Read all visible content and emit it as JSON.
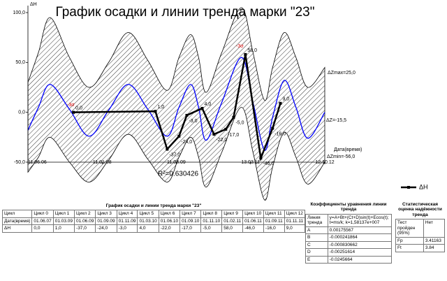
{
  "chart_data": {
    "type": "line",
    "title": "График осадки и линии тренда марки \"23\"",
    "y_label": "ΔH",
    "x_label": "Дата(время)",
    "r_squared": "R²=0.630426",
    "annotations": [
      "-3σ",
      "-3σ",
      "ΔZmax=25,0",
      "ΔZ=-15,5",
      "ΔZmin=-56,0"
    ],
    "x": [
      "01.06.07",
      "01.03.09",
      "01.06.09",
      "01.09.09",
      "01.11.09",
      "01.03.10",
      "01.06.10",
      "01.09.10",
      "01.11.10",
      "01.02.11",
      "01.06.11",
      "01.09.11",
      "01.11.11"
    ],
    "series": [
      {
        "name": "ΔH",
        "color": "#000000",
        "values": [
          0,
          1,
          -37,
          -24,
          -3,
          4,
          -22,
          -17,
          -5,
          58,
          -46,
          -16,
          9
        ],
        "value_labels": [
          "0,0",
          "1,0",
          "-37,0",
          "-24,0",
          "-3,0",
          "4,0",
          "-22,0",
          "-17,0",
          "-5,0",
          "58,0",
          "-46,0",
          "-16,0",
          "9,0"
        ]
      }
    ],
    "trend": {
      "color": "#0000ff",
      "x": [
        "11.06.06",
        "01.09.06",
        "01.12.06",
        "01.05.07",
        "01.10.07",
        "01.03.08",
        "01.08.08",
        "01.01.09",
        "01.06.09",
        "01.09.09",
        "01.12.09",
        "01.02.10",
        "01.04.10",
        "01.08.10",
        "01.01.11",
        "01.04.11",
        "01.07.11",
        "01.09.11",
        "01.12.11",
        "01.03.12",
        "01.06.12",
        "12.10.12"
      ],
      "values": [
        -18,
        5,
        28,
        3,
        -24,
        2,
        28,
        3,
        -24,
        5,
        28,
        5,
        -28,
        10,
        55,
        10,
        -38,
        -5,
        32,
        5,
        -26,
        0
      ],
      "upper": [
        30,
        60,
        95,
        55,
        25,
        50,
        80,
        52,
        22,
        55,
        78,
        55,
        20,
        60,
        105,
        60,
        12,
        45,
        80,
        55,
        25,
        45
      ],
      "lower": [
        -60,
        -45,
        -25,
        -50,
        -70,
        -48,
        -22,
        -47,
        -70,
        -45,
        -25,
        -45,
        -75,
        -40,
        5,
        -40,
        -88,
        -55,
        -20,
        -45,
        -72,
        -50
      ]
    },
    "xlim": [
      "11.06.06",
      "12.10.12"
    ],
    "xticks": [
      "11.06.06",
      "11.01.08",
      "11.08.09",
      "13.03.11",
      "12.10.12"
    ],
    "ylim": [
      -50,
      100
    ],
    "yticks": [
      {
        "value": -50,
        "label": "-50,0"
      },
      {
        "value": 0,
        "label": "0,0"
      },
      {
        "value": 50,
        "label": "50,0"
      },
      {
        "value": 100,
        "label": "100,0"
      }
    ],
    "grid": false,
    "legend": "right"
  },
  "table": {
    "title": "График осадки и линии тренда марки \"23\"",
    "header": [
      "Цикл",
      "Цикл 0",
      "Цикл 1",
      "Цикл 2",
      "Цикл 3",
      "Цикл 4",
      "Цикл 5",
      "Цикл 6",
      "Цикл 7",
      "Цикл 8",
      "Цикл 9",
      "Цикл 10",
      "Цикл 11",
      "Цикл 12"
    ],
    "rows": [
      [
        "Дата(время)",
        "01.06.07",
        "01.03.09",
        "01.06.09",
        "01.09.09",
        "01.11.09",
        "01.03.10",
        "01.06.10",
        "01.09.10",
        "01.11.10",
        "01.02.11",
        "01.06.11",
        "01.09.11",
        "01.11.11"
      ],
      [
        "ΔH",
        "0,0",
        "1,0",
        "-37,0",
        "-24,0",
        "-3,0",
        "4,0",
        "-22,0",
        "-17,0",
        "-5,0",
        "58,0",
        "-46,0",
        "-16,0",
        "9,0"
      ]
    ]
  },
  "coefficients": {
    "title": "Коэффициенты уравнения линии тренда",
    "rows": [
      [
        "Линия тренда",
        "y=A+Bt+(Ct+D)sin(t)+Ecos(t); t=ms/k; k=1,58137e+007"
      ],
      [
        "A",
        "0.00175567"
      ],
      [
        "B",
        "-0.000241864"
      ],
      [
        "C",
        "-0.000830662"
      ],
      [
        "D",
        "-0.00251614"
      ],
      [
        "E",
        "-0.0245664"
      ]
    ]
  },
  "statistics": {
    "title": "Статистическая оценка надёжности тренда",
    "rows": [
      [
        "Тест пройден (95%)",
        "Нет"
      ],
      [
        "Fp",
        "3.41163"
      ],
      [
        "Ft",
        "3.84"
      ]
    ]
  }
}
